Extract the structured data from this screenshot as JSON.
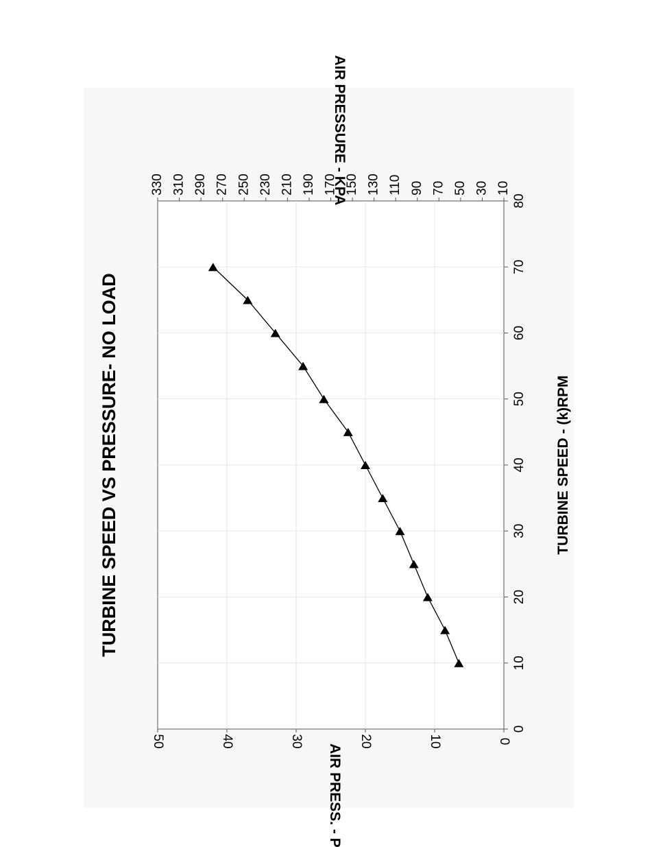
{
  "chart_data": {
    "type": "line",
    "title": "TURBINE SPEED VS PRESSURE- NO LOAD",
    "xlabel": "TURBINE SPEED - (k)RPM",
    "ylabel": "AIR PRESS. - PSIG",
    "y2label": "AIR PRESSURE - KPA",
    "xlim": [
      0,
      80
    ],
    "ylim": [
      0,
      50
    ],
    "y2lim": [
      10,
      330
    ],
    "x_ticks": [
      "0",
      "10",
      "20",
      "30",
      "40",
      "50",
      "60",
      "70",
      "80"
    ],
    "y_ticks": [
      "0",
      "10",
      "20",
      "30",
      "40",
      "50"
    ],
    "y2_ticks": [
      "10",
      "30",
      "50",
      "70",
      "90",
      "110",
      "130",
      "150",
      "170",
      "190",
      "210",
      "230",
      "250",
      "270",
      "290",
      "310",
      "330"
    ],
    "grid": true,
    "marker": "triangle",
    "orientation": "rotated 90° counter-clockwise",
    "series": [
      {
        "x": [
          10,
          15,
          20,
          25,
          30,
          35,
          40,
          45,
          50,
          55,
          60,
          65,
          70
        ],
        "values": [
          6.5,
          8.5,
          11,
          13,
          15,
          17.5,
          20,
          22.5,
          26,
          29,
          33,
          37,
          42
        ]
      }
    ]
  }
}
